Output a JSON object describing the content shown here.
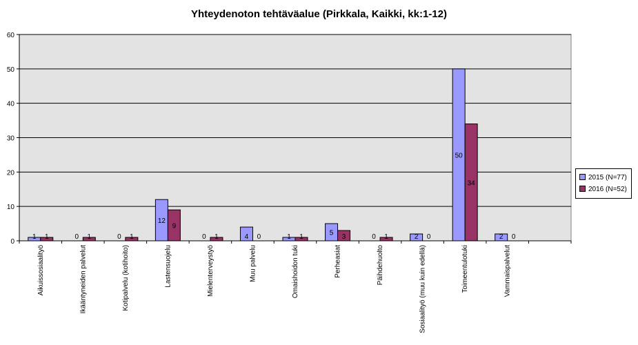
{
  "chart_data": {
    "type": "bar",
    "title": "Yhteydenoton tehtäväalue (Pirkkala, Kaikki, kk:1-12)",
    "categories": [
      "Aikuissosiaalityö",
      "Ikääntyneiden palvelut",
      "Kotipalvelu (kotihoito)",
      "Lastensuojelu",
      "Mielenterveystyö",
      "Muu palvelu",
      "Omaishoidon tuki",
      "Perheasiat",
      "Päihdehuolto",
      "Sosiaalityö (muu kuin edellä)",
      "Toimeentulotuki",
      "Vammaispalvelut",
      ""
    ],
    "series": [
      {
        "name": "2015 (N=77)",
        "color": "#9999ff",
        "values": [
          1,
          0,
          0,
          12,
          0,
          4,
          1,
          5,
          0,
          2,
          50,
          2,
          null
        ]
      },
      {
        "name": "2016 (N=52)",
        "color": "#993366",
        "values": [
          1,
          1,
          1,
          9,
          1,
          0,
          1,
          3,
          1,
          0,
          34,
          0,
          null
        ]
      }
    ],
    "ylim": [
      0,
      60
    ],
    "yticks": [
      0,
      10,
      20,
      30,
      40,
      50,
      60
    ],
    "grid": true,
    "plot_background": "#e3e3e3",
    "legend_position": "right"
  }
}
